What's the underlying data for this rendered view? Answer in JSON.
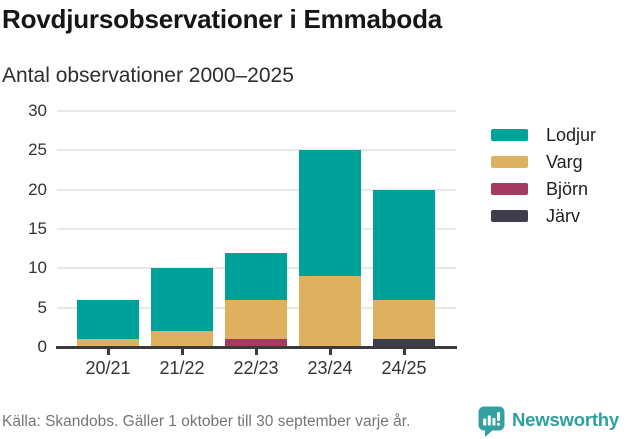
{
  "header": {
    "title": "Rovdjursobservationer i Emmaboda",
    "subtitle": "Antal observationer 2000–2025"
  },
  "chart_data": {
    "type": "bar",
    "stacked": true,
    "title": "Rovdjursobservationer i Emmaboda",
    "subtitle": "Antal observationer 2000–2025",
    "xlabel": "",
    "ylabel": "",
    "categories": [
      "20/21",
      "21/22",
      "22/23",
      "23/24",
      "24/25"
    ],
    "series": [
      {
        "name": "Lodjur",
        "color": "#00a199",
        "values": [
          5,
          8,
          6,
          16,
          14
        ]
      },
      {
        "name": "Varg",
        "color": "#ddb15f",
        "values": [
          1,
          2,
          5,
          9,
          5
        ]
      },
      {
        "name": "Björn",
        "color": "#a63a60",
        "values": [
          0,
          0,
          1,
          0,
          0
        ]
      },
      {
        "name": "Järv",
        "color": "#3e3d4d",
        "values": [
          0,
          0,
          0,
          0,
          1
        ]
      }
    ],
    "stack_order_bottom_to_top": [
      "Järv",
      "Björn",
      "Varg",
      "Lodjur"
    ],
    "totals": [
      6,
      10,
      12,
      25,
      20
    ],
    "ylim": [
      0,
      30
    ],
    "yticks": [
      0,
      5,
      10,
      15,
      20,
      25,
      30
    ],
    "grid": "horizontal",
    "legend_position": "right"
  },
  "footer": {
    "source": "Källa: Skandobs. Gäller 1 oktober till 30 september varje år.",
    "brand": "Newsworthy"
  },
  "colors": {
    "grid": "#e8e8e8",
    "axis": "#3b3b3b",
    "brand_teal": "#35a0a1",
    "text_muted": "#757575"
  }
}
